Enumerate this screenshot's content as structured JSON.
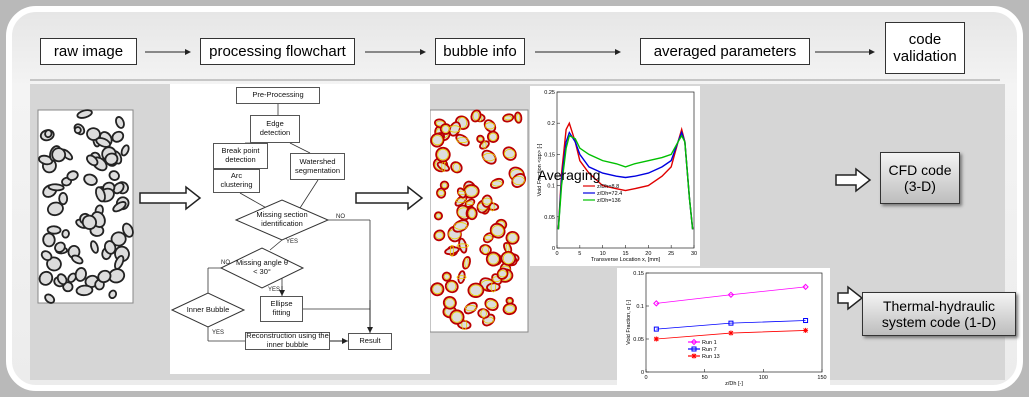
{
  "header": {
    "steps": [
      "raw image",
      "processing flowchart",
      "bubble info",
      "averaged parameters",
      "code validation"
    ]
  },
  "flowchart": {
    "nodes": [
      "Pre-Processing",
      "Edge detection",
      "Break point detection",
      "Arc clustering",
      "Watershed segmentation",
      "Missing section identification",
      "Missing angle θ < 30°",
      "Inner Bubble",
      "Ellipse fitting",
      "Reconstruction using the inner bubble",
      "Result"
    ],
    "edge_labels": [
      "NO",
      "YES",
      "NO",
      "YES",
      "YES"
    ]
  },
  "averaging_label": "Averaging",
  "plots": [
    {
      "type": "line",
      "ylabel": "Void Fraction <αp> [-]",
      "xlabel": "Transverse Location x, [mm]",
      "xlim": [
        0,
        30
      ],
      "ylim": [
        0,
        0.25
      ],
      "xticks": [
        0,
        5,
        10,
        15,
        20,
        25,
        30
      ],
      "yticks": [
        0,
        0.05,
        0.1,
        0.15,
        0.2,
        0.25
      ],
      "x": [
        0.3,
        1,
        2,
        2.7,
        4,
        5,
        7,
        10,
        13,
        15,
        17,
        20,
        23,
        25,
        26.5,
        27.3,
        28,
        29,
        29.7
      ],
      "series": [
        {
          "name": "z/Dh=8.8",
          "color": "#e00000",
          "values": [
            0.03,
            0.12,
            0.19,
            0.2,
            0.17,
            0.14,
            0.12,
            0.1,
            0.095,
            0.092,
            0.095,
            0.1,
            0.115,
            0.13,
            0.17,
            0.19,
            0.17,
            0.08,
            0.03
          ]
        },
        {
          "name": "z/Dh=72.4",
          "color": "#0000e0",
          "values": [
            0.03,
            0.11,
            0.17,
            0.185,
            0.17,
            0.15,
            0.13,
            0.12,
            0.115,
            0.113,
            0.115,
            0.12,
            0.13,
            0.14,
            0.17,
            0.185,
            0.17,
            0.08,
            0.03
          ]
        },
        {
          "name": "z/Dh=136",
          "color": "#00c000",
          "values": [
            0.03,
            0.1,
            0.16,
            0.18,
            0.175,
            0.16,
            0.15,
            0.14,
            0.135,
            0.13,
            0.135,
            0.14,
            0.145,
            0.15,
            0.17,
            0.18,
            0.17,
            0.08,
            0.03
          ]
        }
      ]
    },
    {
      "type": "line",
      "ylabel": "Void Fraction, α [-]",
      "xlabel": "z/Dh [-]",
      "xlim": [
        0,
        150
      ],
      "ylim": [
        0,
        0.15
      ],
      "xticks": [
        0,
        50,
        100,
        150
      ],
      "yticks": [
        0,
        0.05,
        0.1,
        0.15
      ],
      "x": [
        8.8,
        72.4,
        136
      ],
      "series": [
        {
          "name": "Run 1",
          "color": "#ff00ff",
          "marker": "diamond",
          "values": [
            0.104,
            0.117,
            0.129
          ]
        },
        {
          "name": "Run 7",
          "color": "#0000ff",
          "marker": "square",
          "values": [
            0.065,
            0.074,
            0.078
          ]
        },
        {
          "name": "Run 13",
          "color": "#ff0000",
          "marker": "star",
          "values": [
            0.05,
            0.059,
            0.063
          ]
        }
      ]
    }
  ],
  "outputs": [
    "CFD code (3-D)",
    "Thermal-hydraulic system code (1-D)"
  ]
}
